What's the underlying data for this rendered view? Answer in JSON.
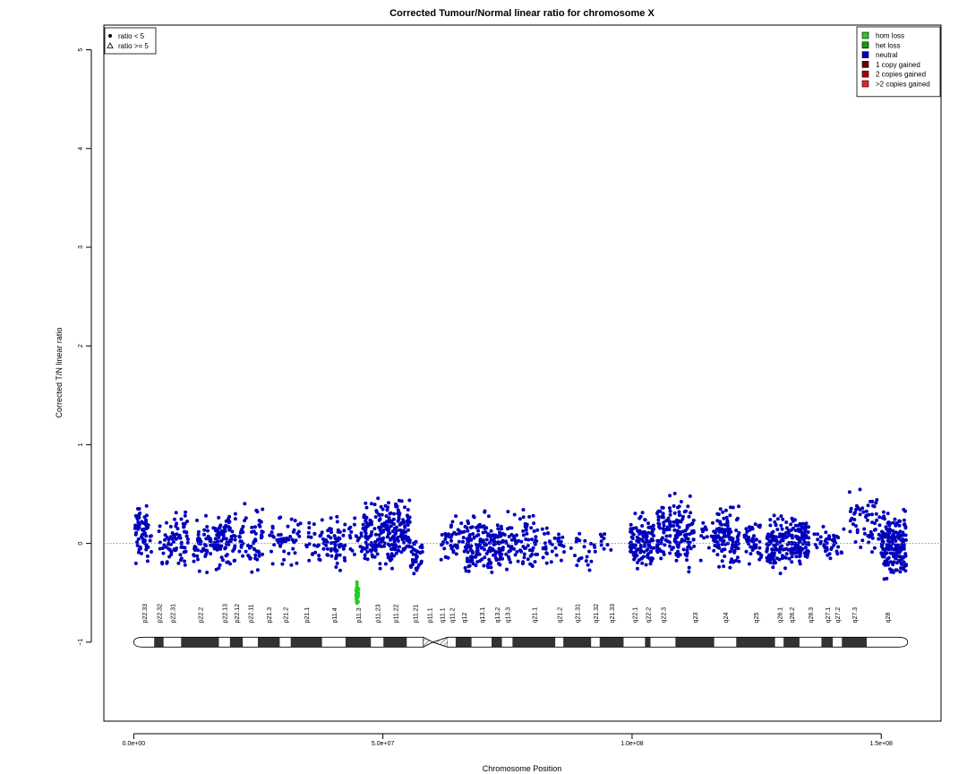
{
  "chart_data": {
    "type": "scatter",
    "title": "Corrected Tumour/Normal linear ratio for chromosome  X",
    "xlabel": "Chromosome Position",
    "ylabel": "Corrected T/N linear ratio",
    "xlim": [
      -6000000,
      162000000
    ],
    "ylim": [
      -1.8,
      5.25
    ],
    "x_ticks": [
      {
        "value": 0,
        "label": "0.0e+00"
      },
      {
        "value": 50000000,
        "label": "5.0e+07"
      },
      {
        "value": 100000000,
        "label": "1.0e+08"
      },
      {
        "value": 150000000,
        "label": "1.5e+08"
      }
    ],
    "y_ticks": [
      {
        "value": -1,
        "label": "−1"
      },
      {
        "value": 0,
        "label": "0"
      },
      {
        "value": 1,
        "label": "1"
      },
      {
        "value": 2,
        "label": "2"
      },
      {
        "value": 3,
        "label": "3"
      },
      {
        "value": 4,
        "label": "4"
      },
      {
        "value": 5,
        "label": "5"
      }
    ],
    "reference_line": {
      "y": 0,
      "style": "dotted"
    },
    "shape_legend": {
      "position": "top-left",
      "items": [
        {
          "label": "ratio < 5",
          "symbol": "dot"
        },
        {
          "label": "ratio >= 5",
          "symbol": "triangle"
        }
      ]
    },
    "color_legend": {
      "position": "top-right",
      "items": [
        {
          "label": "hom loss",
          "color": "#22cc22"
        },
        {
          "label": "het loss",
          "color": "#119911"
        },
        {
          "label": "neutral",
          "color": "#0000bb"
        },
        {
          "label": "1 copy gained",
          "color": "#660000"
        },
        {
          "label": "2 copies gained",
          "color": "#aa0000"
        },
        {
          "label": ">2 copies gained",
          "color": "#ee2222"
        }
      ]
    },
    "series": [
      {
        "name": "neutral",
        "color": "#0000bb",
        "note_segments": "neutral probes summarized as dense clusters along chromosome X",
        "clusters": [
          {
            "x_start": 100000,
            "x_end": 3600000,
            "count": 70,
            "y_min": -0.3,
            "y_max": 0.48
          },
          {
            "x_start": 5000000,
            "x_end": 7500000,
            "count": 25,
            "y_min": -0.3,
            "y_max": 0.3
          },
          {
            "x_start": 7500000,
            "x_end": 11000000,
            "count": 50,
            "y_min": -0.35,
            "y_max": 0.47
          },
          {
            "x_start": 12000000,
            "x_end": 17000000,
            "count": 70,
            "y_min": -0.35,
            "y_max": 0.35
          },
          {
            "x_start": 17000000,
            "x_end": 20500000,
            "count": 65,
            "y_min": -0.38,
            "y_max": 0.45
          },
          {
            "x_start": 21000000,
            "x_end": 26000000,
            "count": 60,
            "y_min": -0.35,
            "y_max": 0.5
          },
          {
            "x_start": 27000000,
            "x_end": 33500000,
            "count": 50,
            "y_min": -0.3,
            "y_max": 0.38
          },
          {
            "x_start": 34500000,
            "x_end": 38500000,
            "count": 30,
            "y_min": -0.25,
            "y_max": 0.3
          },
          {
            "x_start": 38500000,
            "x_end": 42500000,
            "count": 55,
            "y_min": -0.38,
            "y_max": 0.35
          },
          {
            "x_start": 43000000,
            "x_end": 46000000,
            "count": 20,
            "y_min": -0.25,
            "y_max": 0.35
          },
          {
            "x_start": 46000000,
            "x_end": 52500000,
            "count": 160,
            "y_min": -0.38,
            "y_max": 0.52
          },
          {
            "x_start": 52500000,
            "x_end": 55500000,
            "count": 80,
            "y_min": -0.35,
            "y_max": 0.59
          },
          {
            "x_start": 55500000,
            "x_end": 58000000,
            "count": 35,
            "y_min": -0.42,
            "y_max": 0.15
          },
          {
            "x_start": 61500000,
            "x_end": 63500000,
            "count": 15,
            "y_min": -0.25,
            "y_max": 0.2
          },
          {
            "x_start": 63500000,
            "x_end": 66500000,
            "count": 30,
            "y_min": -0.3,
            "y_max": 0.4
          },
          {
            "x_start": 66500000,
            "x_end": 74000000,
            "count": 170,
            "y_min": -0.42,
            "y_max": 0.38
          },
          {
            "x_start": 74000000,
            "x_end": 81000000,
            "count": 90,
            "y_min": -0.38,
            "y_max": 0.44
          },
          {
            "x_start": 82000000,
            "x_end": 86500000,
            "count": 35,
            "y_min": -0.35,
            "y_max": 0.35
          },
          {
            "x_start": 87500000,
            "x_end": 92000000,
            "count": 20,
            "y_min": -0.35,
            "y_max": 0.2
          },
          {
            "x_start": 92000000,
            "x_end": 96500000,
            "count": 12,
            "y_min": -0.25,
            "y_max": 0.2
          },
          {
            "x_start": 99500000,
            "x_end": 104500000,
            "count": 120,
            "y_min": -0.4,
            "y_max": 0.42
          },
          {
            "x_start": 105000000,
            "x_end": 112500000,
            "count": 160,
            "y_min": -0.35,
            "y_max": 0.6
          },
          {
            "x_start": 113500000,
            "x_end": 117000000,
            "count": 25,
            "y_min": -0.25,
            "y_max": 0.35
          },
          {
            "x_start": 117000000,
            "x_end": 121500000,
            "count": 110,
            "y_min": -0.35,
            "y_max": 0.45
          },
          {
            "x_start": 122500000,
            "x_end": 126000000,
            "count": 45,
            "y_min": -0.3,
            "y_max": 0.35
          },
          {
            "x_start": 127000000,
            "x_end": 131500000,
            "count": 110,
            "y_min": -0.35,
            "y_max": 0.38
          },
          {
            "x_start": 131500000,
            "x_end": 135500000,
            "count": 110,
            "y_min": -0.28,
            "y_max": 0.35
          },
          {
            "x_start": 136500000,
            "x_end": 142500000,
            "count": 45,
            "y_min": -0.3,
            "y_max": 0.25
          },
          {
            "x_start": 143500000,
            "x_end": 150000000,
            "count": 60,
            "y_min": -0.2,
            "y_max": 0.6
          },
          {
            "x_start": 150000000,
            "x_end": 155000000,
            "count": 190,
            "y_min": -0.45,
            "y_max": 0.42
          }
        ]
      },
      {
        "name": "hom loss",
        "color": "#22cc22",
        "x_start": 44600000,
        "x_end": 45100000,
        "count": 25,
        "y_min": -0.65,
        "y_max": -0.35
      }
    ],
    "ideogram": {
      "y": -1,
      "centromere": 60000000,
      "bands": [
        {
          "label": "p22.33",
          "start": 0,
          "end": 4100000,
          "stain": "gneg"
        },
        {
          "label": "p22.32",
          "start": 4100000,
          "end": 6000000,
          "stain": "gpos"
        },
        {
          "label": "p22.31",
          "start": 6000000,
          "end": 9500000,
          "stain": "gneg"
        },
        {
          "label": "p22.2",
          "start": 9500000,
          "end": 17100000,
          "stain": "gpos"
        },
        {
          "label": "p22.13",
          "start": 17100000,
          "end": 19300000,
          "stain": "gneg"
        },
        {
          "label": "p22.12",
          "start": 19300000,
          "end": 21900000,
          "stain": "gpos"
        },
        {
          "label": "p22.11",
          "start": 21900000,
          "end": 24900000,
          "stain": "gneg"
        },
        {
          "label": "p21.3",
          "start": 24900000,
          "end": 29300000,
          "stain": "gpos"
        },
        {
          "label": "p21.2",
          "start": 29300000,
          "end": 31500000,
          "stain": "gneg"
        },
        {
          "label": "p21.1",
          "start": 31500000,
          "end": 37800000,
          "stain": "gpos"
        },
        {
          "label": "p11.4",
          "start": 37800000,
          "end": 42500000,
          "stain": "gneg"
        },
        {
          "label": "p11.3",
          "start": 42500000,
          "end": 47600000,
          "stain": "gpos"
        },
        {
          "label": "p11.23",
          "start": 47600000,
          "end": 50100000,
          "stain": "gneg"
        },
        {
          "label": "p11.22",
          "start": 50100000,
          "end": 54800000,
          "stain": "gpos"
        },
        {
          "label": "p11.21",
          "start": 54800000,
          "end": 58100000,
          "stain": "gneg"
        },
        {
          "label": "p11.1",
          "start": 58100000,
          "end": 60600000,
          "stain": "acen"
        },
        {
          "label": "q11.1",
          "start": 60600000,
          "end": 63000000,
          "stain": "acen"
        },
        {
          "label": "q11.2",
          "start": 63000000,
          "end": 64600000,
          "stain": "gneg"
        },
        {
          "label": "q12",
          "start": 64600000,
          "end": 67800000,
          "stain": "gpos"
        },
        {
          "label": "q13.1",
          "start": 67800000,
          "end": 71800000,
          "stain": "gneg"
        },
        {
          "label": "q13.2",
          "start": 71800000,
          "end": 73900000,
          "stain": "gpos"
        },
        {
          "label": "q13.3",
          "start": 73900000,
          "end": 76000000,
          "stain": "gneg"
        },
        {
          "label": "q21.1",
          "start": 76000000,
          "end": 84600000,
          "stain": "gpos"
        },
        {
          "label": "q21.2",
          "start": 84600000,
          "end": 86200000,
          "stain": "gneg"
        },
        {
          "label": "q21.31",
          "start": 86200000,
          "end": 91800000,
          "stain": "gpos"
        },
        {
          "label": "q21.32",
          "start": 91800000,
          "end": 93500000,
          "stain": "gneg"
        },
        {
          "label": "q21.33",
          "start": 93500000,
          "end": 98300000,
          "stain": "gpos"
        },
        {
          "label": "q22.1",
          "start": 98300000,
          "end": 102600000,
          "stain": "gneg"
        },
        {
          "label": "q22.2",
          "start": 102600000,
          "end": 103700000,
          "stain": "gpos"
        },
        {
          "label": "q22.3",
          "start": 103700000,
          "end": 108700000,
          "stain": "gneg"
        },
        {
          "label": "q23",
          "start": 108700000,
          "end": 116500000,
          "stain": "gpos"
        },
        {
          "label": "q24",
          "start": 116500000,
          "end": 120900000,
          "stain": "gneg"
        },
        {
          "label": "q25",
          "start": 120900000,
          "end": 128700000,
          "stain": "gpos"
        },
        {
          "label": "q26.1",
          "start": 128700000,
          "end": 130400000,
          "stain": "gneg"
        },
        {
          "label": "q26.2",
          "start": 130400000,
          "end": 133600000,
          "stain": "gpos"
        },
        {
          "label": "q26.3",
          "start": 133600000,
          "end": 138000000,
          "stain": "gneg"
        },
        {
          "label": "q27.1",
          "start": 138000000,
          "end": 140300000,
          "stain": "gpos"
        },
        {
          "label": "q27.2",
          "start": 140300000,
          "end": 142100000,
          "stain": "gneg"
        },
        {
          "label": "q27.3",
          "start": 142100000,
          "end": 147100000,
          "stain": "gpos"
        },
        {
          "label": "q28",
          "start": 147100000,
          "end": 155300000,
          "stain": "gneg"
        }
      ]
    }
  }
}
